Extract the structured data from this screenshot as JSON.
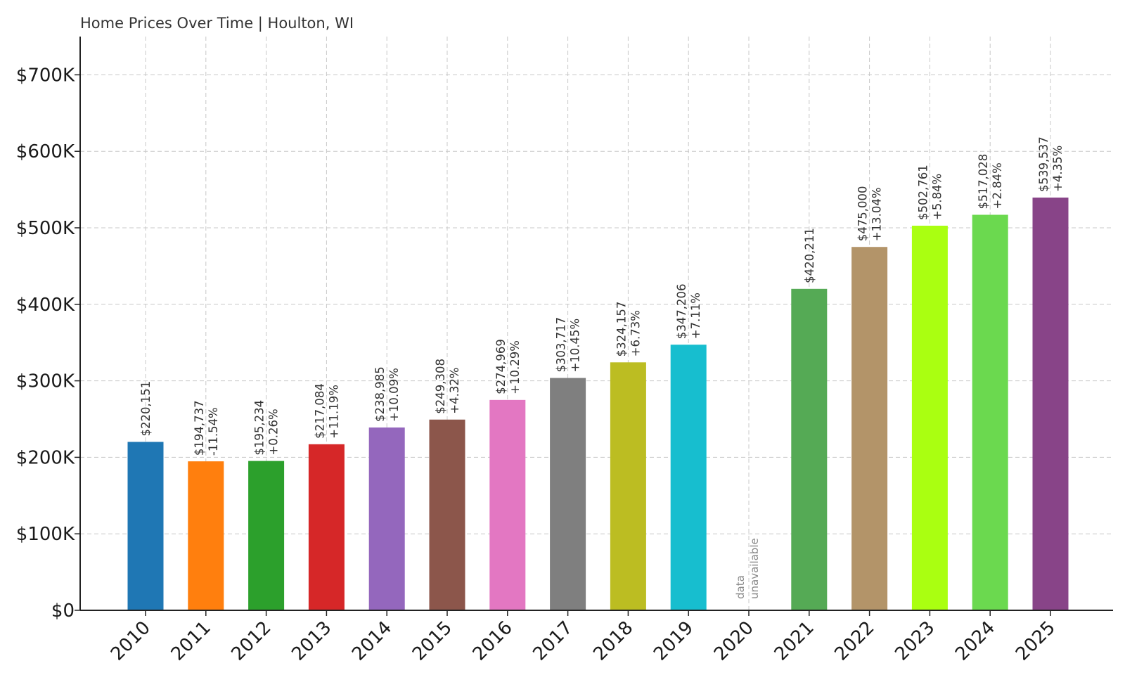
{
  "chart_data": {
    "type": "bar",
    "title": "Home Prices Over Time | Houlton, WI",
    "xlabel": "",
    "ylabel": "",
    "ylim": [
      0,
      750000
    ],
    "yticks": [
      0,
      100000,
      200000,
      300000,
      400000,
      500000,
      600000,
      700000
    ],
    "ytick_labels": [
      "$0",
      "$100K",
      "$200K",
      "$300K",
      "$400K",
      "$500K",
      "$600K",
      "$700K"
    ],
    "grid": true,
    "categories": [
      "2010",
      "2011",
      "2012",
      "2013",
      "2014",
      "2015",
      "2016",
      "2017",
      "2018",
      "2019",
      "2020",
      "2021",
      "2022",
      "2023",
      "2024",
      "2025"
    ],
    "values": [
      220151,
      194737,
      195234,
      217084,
      238985,
      249308,
      274969,
      303717,
      324157,
      347206,
      null,
      420211,
      475000,
      502761,
      517028,
      539537
    ],
    "value_labels": [
      "$220,151",
      "$194,737",
      "$195,234",
      "$217,084",
      "$238,985",
      "$249,308",
      "$274,969",
      "$303,717",
      "$324,157",
      "$347,206",
      "",
      "$420,211",
      "$475,000",
      "$502,761",
      "$517,028",
      "$539,537"
    ],
    "change_labels": [
      "",
      "-11.54%",
      "+0.26%",
      "+11.19%",
      "+10.09%",
      "+4.32%",
      "+10.29%",
      "+10.45%",
      "+6.73%",
      "+7.11%",
      "",
      "",
      "+13.04%",
      "+5.84%",
      "+2.84%",
      "+4.35%"
    ],
    "missing_label": [
      "data",
      "unavailable"
    ],
    "colors": [
      "#1f77b4",
      "#ff7f0e",
      "#2ca02c",
      "#d62728",
      "#9467bd",
      "#8c564b",
      "#e377c2",
      "#7f7f7f",
      "#bcbd22",
      "#17becf",
      "#ffffff",
      "#55aa55",
      "#b39469",
      "#aaff11",
      "#6bd94f",
      "#884488"
    ]
  }
}
